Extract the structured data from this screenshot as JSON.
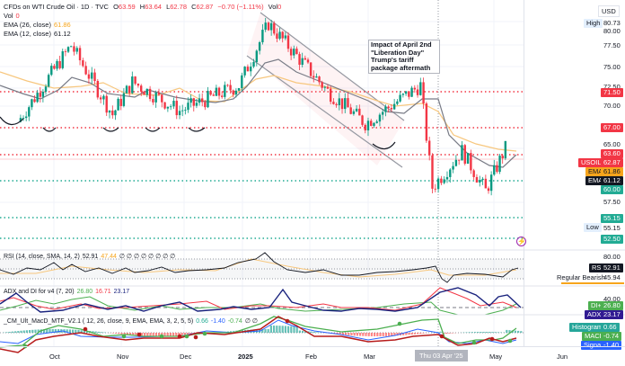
{
  "header": {
    "title": "CFDs on WTI Crude Oil · 1D · TVC",
    "ohlc": {
      "o_label": "O",
      "o": "63.59",
      "h_label": "H",
      "h": "63.64",
      "l_label": "L",
      "l": "62.78",
      "c_label": "C",
      "c": "62.87",
      "change": "−0.70 (−1.11%)",
      "vol_label": "Vol",
      "vol": "0"
    },
    "vol_row": {
      "label": "Vol",
      "value": "0"
    },
    "ema26": {
      "label": "EMA (26, close)",
      "value": "61.86"
    },
    "ema12": {
      "label": "EMA (12, close)",
      "value": "61.12"
    }
  },
  "price_scale": {
    "currency": "USD",
    "ticks": [
      "80.00",
      "77.50",
      "75.00",
      "72.50",
      "70.00",
      "65.00",
      "57.50"
    ],
    "high_label": "High",
    "high_value": "80.73",
    "low_label": "Low",
    "low_value": "55.15",
    "levels": [
      {
        "value": "71.50",
        "color": "#f23645"
      },
      {
        "value": "67.00",
        "color": "#f23645"
      },
      {
        "value": "63.60",
        "color": "#f23645"
      },
      {
        "value": "60.00",
        "color": "#22ab94"
      },
      {
        "value": "55.15",
        "color": "#22ab94"
      },
      {
        "value": "52.50",
        "color": "#22ab94"
      }
    ],
    "usoil_label": "USOIL",
    "usoil_value": "62.87",
    "ema_label": "EMA",
    "ema26_value": "61.86",
    "ema12_value": "61.12"
  },
  "annotation": "Impact of April 2nd \"Liberation Day\" Trump's tariff package aftermath",
  "rsi": {
    "legend": "RSI (14, close, SMA, 14, 2)",
    "value": "52.91",
    "sma": "47.44",
    "extra": "∅ ∅ ∅ ∅ ∅ ∅ ∅ ∅",
    "tick_80": "80.00",
    "tag_label": "RSI",
    "tag_value": "52.91",
    "div_label": "Regular Bearish",
    "div_value": "45.94"
  },
  "adx": {
    "legend": "ADX and DI for v4 (7, 20)",
    "di_plus": "26.80",
    "di_minus": "16.71",
    "adx": "23.17",
    "tick_40": "40.00",
    "di_tag": "DI+",
    "di_tag_value": "26.80",
    "adx_tag": "ADX",
    "adx_tag_value": "23.17"
  },
  "macd": {
    "legend": "_CM_Ult_MacD_MTF_V2.1 ( 12, 26, close, 9, EMA, EMA, 3, 2, 5, 5)",
    "hist": "0.66",
    "signal": "-1.40",
    "macd": "-0.74",
    "extra": "∅ ∅",
    "hist_tag": "Histogram",
    "hist_tag_value": "0.66",
    "macd_tag": "MACD",
    "macd_tag_value": "-0.74",
    "signal_tag": "Signal",
    "signal_tag_value": "-1.40"
  },
  "x_axis": {
    "labels": [
      "Oct",
      "Nov",
      "Dec",
      "2025",
      "Feb",
      "Mar",
      "May",
      "Jun"
    ],
    "crosshair_date": "Thu 03 Apr '25"
  },
  "chart_data": {
    "type": "candlestick",
    "title": "CFDs on WTI Crude Oil · 1D · TVC",
    "x_range": [
      "Sep 2024",
      "Jun 2025"
    ],
    "ylim": [
      50.5,
      82
    ],
    "approx_close_path": [
      {
        "date": "2024-09-10",
        "close": 66.5
      },
      {
        "date": "2024-10-07",
        "close": 77.0
      },
      {
        "date": "2024-10-28",
        "close": 67.5
      },
      {
        "date": "2024-11-07",
        "close": 72.0
      },
      {
        "date": "2024-12-01",
        "close": 68.0
      },
      {
        "date": "2024-12-31",
        "close": 71.5
      },
      {
        "date": "2025-01-15",
        "close": 80.0
      },
      {
        "date": "2025-02-14",
        "close": 70.7
      },
      {
        "date": "2025-03-05",
        "close": 66.3
      },
      {
        "date": "2025-04-02",
        "close": 71.5
      },
      {
        "date": "2025-04-08",
        "close": 57.5
      },
      {
        "date": "2025-04-23",
        "close": 62.5
      },
      {
        "date": "2025-05-05",
        "close": 57.0
      },
      {
        "date": "2025-05-15",
        "close": 62.87
      }
    ],
    "horizontal_levels": [
      71.5,
      67.0,
      63.6,
      60.0,
      55.15,
      52.5
    ],
    "high": 80.73,
    "low": 55.15,
    "indicators": {
      "ema26": 61.86,
      "ema12": 61.12,
      "rsi": 52.91,
      "rsi_sma": 47.44,
      "di_plus": 26.8,
      "di_minus": 16.71,
      "adx": 23.17,
      "macd_hist": 0.66,
      "macd": -0.74,
      "macd_signal": -1.4
    },
    "annotations": [
      "Descending channel Jan–Mar 2025",
      "Support at 67.00 with repeated bounces",
      "Impact of April 2nd \"Liberation Day\" Trump's tariff package aftermath",
      "Regular Bearish divergence"
    ]
  }
}
